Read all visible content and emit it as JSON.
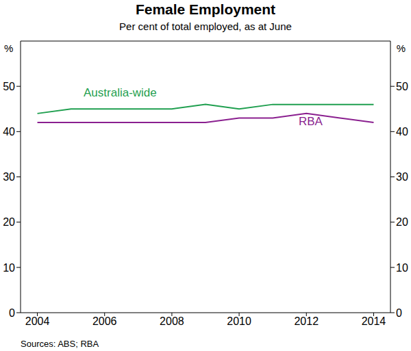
{
  "chart_data": {
    "type": "line",
    "title": "Female Employment",
    "subtitle": "Per cent of total employed, as at June",
    "y_label": "%",
    "source": "Sources: ABS; RBA",
    "x": [
      2004,
      2005,
      2006,
      2007,
      2008,
      2009,
      2010,
      2011,
      2012,
      2013,
      2014
    ],
    "series": [
      {
        "name": "Australia-wide",
        "color": "#1f9f4f",
        "values": [
          44,
          45,
          45,
          45,
          45,
          46,
          45,
          46,
          46,
          46,
          46
        ]
      },
      {
        "name": "RBA",
        "color": "#8a1f8f",
        "values": [
          42,
          42,
          42,
          42,
          42,
          42,
          43,
          43,
          44,
          43,
          42
        ]
      }
    ],
    "xlim": [
      2003.5,
      2014.5
    ],
    "xticks": [
      2004,
      2006,
      2008,
      2010,
      2012,
      2014
    ],
    "ylim": [
      0,
      60
    ],
    "yticks": [
      0,
      10,
      20,
      30,
      40,
      50
    ],
    "grid": false,
    "legend": false
  }
}
